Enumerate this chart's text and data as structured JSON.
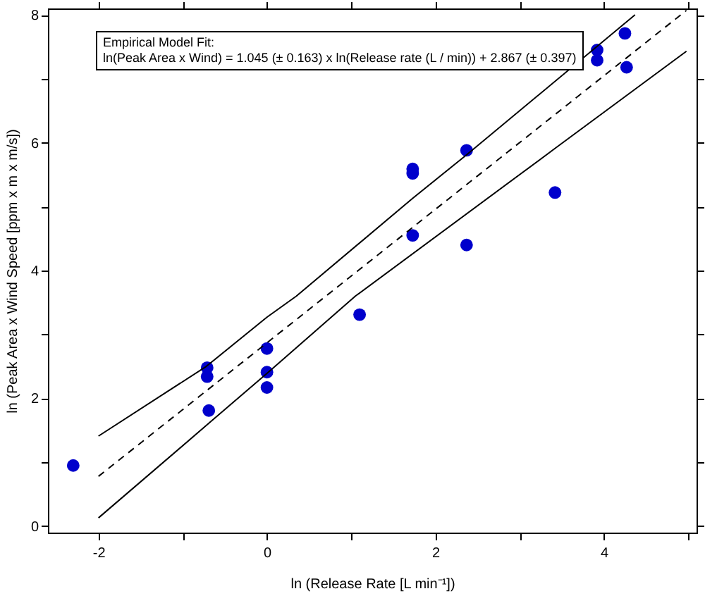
{
  "chart_data": {
    "type": "scatter",
    "xlabel": "ln (Release Rate  [L min⁻¹])",
    "ylabel": "ln (Peak Area x Wind Speed [ppm x m x m/s])",
    "annotations": [
      "Empirical Model Fit:",
      "ln(Peak Area x Wind) = 1.045 (± 0.163) x ln(Release rate (L / min)) + 2.867 (± 0.397)"
    ],
    "xlim": [
      -2.6,
      5.1
    ],
    "xticks": [
      -2,
      {
        "value": -1,
        "label": null
      },
      0,
      {
        "value": 1,
        "label": null
      },
      2,
      {
        "value": 3,
        "label": null
      },
      4,
      {
        "value": 5,
        "label": null
      }
    ],
    "ylim": [
      -0.1,
      8.1
    ],
    "yticks": [
      0,
      {
        "value": 1,
        "label": null
      },
      2,
      {
        "value": 3,
        "label": null
      },
      4,
      {
        "value": 5,
        "label": null
      },
      6,
      {
        "value": 7,
        "label": null
      },
      8
    ],
    "grid": false,
    "series": [
      {
        "type": "scatter",
        "marker": "circle",
        "color": "#0000cc",
        "x": [
          -2.3,
          -0.71,
          -0.71,
          -0.69,
          0,
          0,
          0,
          1.1,
          1.73,
          1.73,
          1.73,
          2.37,
          2.37,
          3.42,
          3.92,
          3.92,
          4.25,
          4.27
        ],
        "values": [
          0.95,
          2.48,
          2.34,
          1.81,
          2.78,
          2.41,
          2.17,
          3.31,
          5.59,
          5.52,
          4.55,
          5.88,
          4.4,
          5.22,
          7.45,
          7.29,
          7.71,
          7.18
        ]
      },
      {
        "type": "line",
        "marker": "none",
        "line_style": "dashed",
        "color": "#000000",
        "x": [
          -2,
          4.98
        ],
        "values": [
          0.78,
          8.07
        ]
      },
      {
        "type": "line",
        "marker": "none",
        "line_style": "solid",
        "color": "#000000",
        "x": [
          -2,
          -0.72,
          0,
          0.35,
          1.73,
          2.37,
          4.37
        ],
        "values": [
          1.41,
          2.5,
          3.27,
          3.6,
          5.13,
          5.81,
          8.0
        ]
      },
      {
        "type": "line",
        "marker": "none",
        "line_style": "solid",
        "color": "#000000",
        "x": [
          -2,
          -0.69,
          0,
          1.05,
          3.43,
          4.98
        ],
        "values": [
          0.13,
          1.61,
          2.39,
          3.6,
          5.92,
          7.43
        ]
      }
    ]
  }
}
